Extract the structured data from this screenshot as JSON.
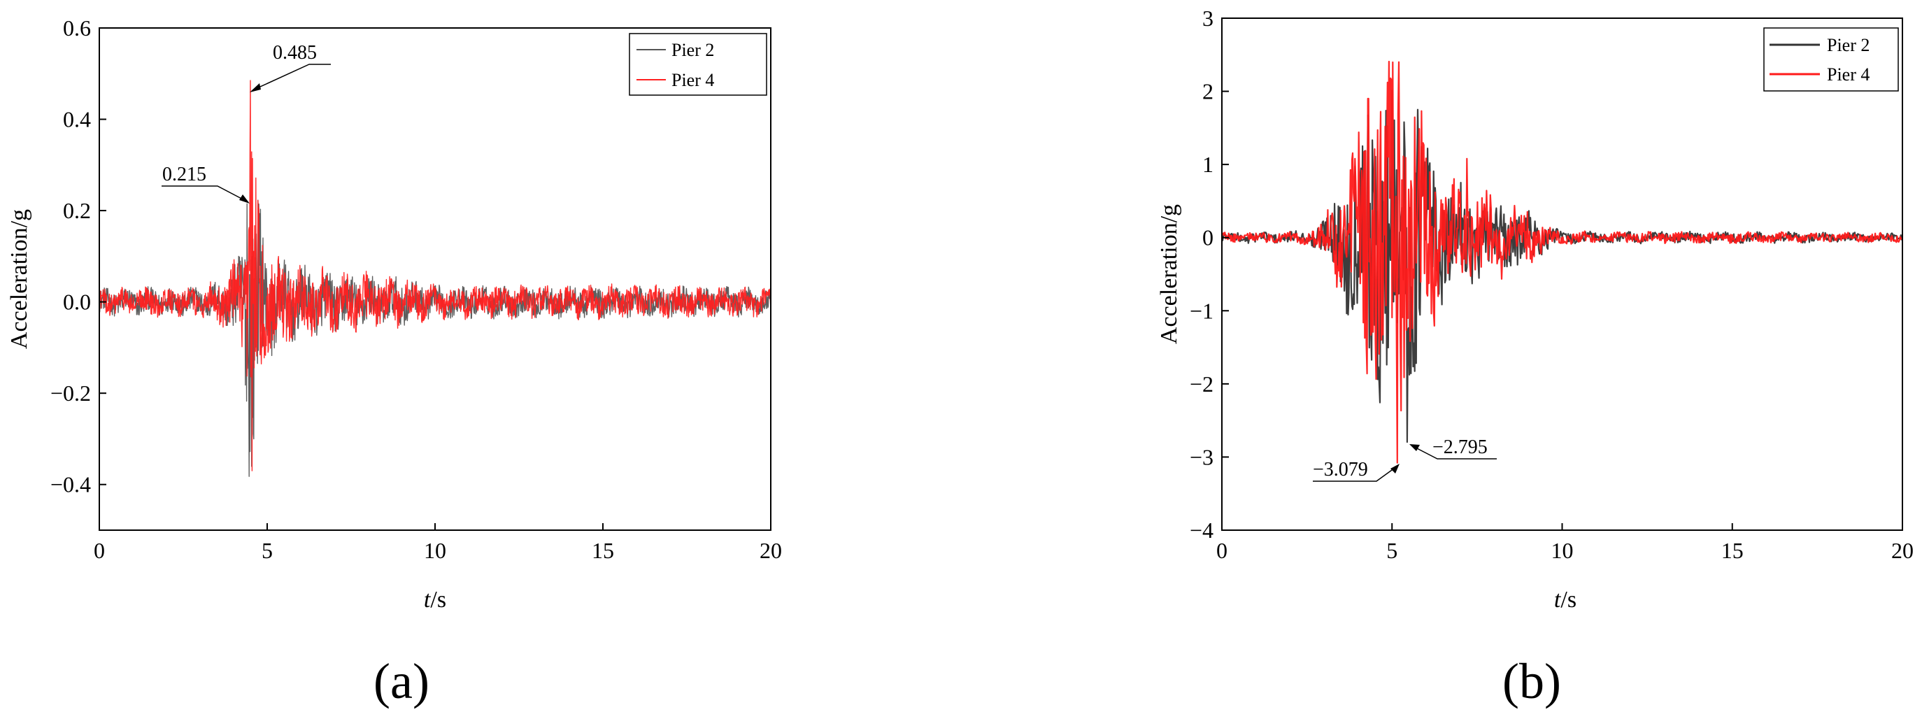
{
  "figure": {
    "panel_a_label": "(a)",
    "panel_b_label": "(b)"
  },
  "chart_data": [
    {
      "type": "line",
      "xlabel_italic": "t",
      "xlabel_unit": "/s",
      "ylabel": "Acceleration/g",
      "xlim": [
        0,
        20
      ],
      "ylim": [
        -0.5,
        0.6
      ],
      "xticks": [
        "0",
        "5",
        "10",
        "15",
        "20"
      ],
      "yticks": [
        "−0.4",
        "−0.2",
        "0.0",
        "0.2",
        "0.4",
        "0.6"
      ],
      "legend_position": "top-right",
      "series": [
        {
          "name": "Pier 2",
          "color": "#555555"
        },
        {
          "name": "Pier 4",
          "color": "#ff2020"
        }
      ],
      "annotations": [
        {
          "text": "0.485",
          "x": 4.5,
          "y": 0.465
        },
        {
          "text": "0.215",
          "x": 4.4,
          "y": 0.215
        }
      ],
      "envelope": {
        "t": [
          0,
          3.0,
          3.8,
          4.2,
          4.4,
          4.5,
          4.7,
          5.0,
          5.5,
          6.0,
          7.0,
          8.0,
          9.0,
          10.0,
          15.0,
          20.0
        ],
        "amp": [
          0.025,
          0.028,
          0.045,
          0.09,
          0.2,
          0.36,
          0.2,
          0.1,
          0.08,
          0.065,
          0.055,
          0.05,
          0.045,
          0.03,
          0.03,
          0.025
        ]
      },
      "peaks": [
        {
          "x": 4.5,
          "y": 0.485,
          "series": 1
        },
        {
          "x": 4.55,
          "y": -0.37,
          "series": 1
        },
        {
          "x": 4.4,
          "y": 0.215,
          "series": 0
        },
        {
          "x": 4.6,
          "y": -0.3,
          "series": 0
        }
      ]
    },
    {
      "type": "line",
      "xlabel_italic": "t",
      "xlabel_unit": "/s",
      "ylabel": "Acceleration/g",
      "xlim": [
        0,
        20
      ],
      "ylim": [
        -4,
        3
      ],
      "xticks": [
        "0",
        "5",
        "10",
        "15",
        "20"
      ],
      "yticks": [
        "−4",
        "−3",
        "−2",
        "−1",
        "0",
        "1",
        "2",
        "3"
      ],
      "legend_position": "top-right",
      "series": [
        {
          "name": "Pier 2",
          "color": "#333333"
        },
        {
          "name": "Pier 4",
          "color": "#ff1a1a"
        }
      ],
      "annotations": [
        {
          "text": "−3.079",
          "x": 5.15,
          "y": -3.079
        },
        {
          "text": "−2.795",
          "x": 5.5,
          "y": -2.795
        }
      ],
      "envelope": {
        "t": [
          0,
          2.5,
          3.0,
          3.5,
          4.0,
          4.5,
          5.0,
          5.5,
          6.0,
          6.5,
          7.0,
          8.0,
          9.0,
          9.5,
          10.0,
          15.0,
          20.0
        ],
        "amp": [
          0.06,
          0.07,
          0.25,
          0.6,
          1.2,
          1.8,
          2.1,
          1.7,
          1.2,
          0.7,
          0.6,
          0.45,
          0.35,
          0.15,
          0.07,
          0.06,
          0.05
        ]
      },
      "peaks": [
        {
          "x": 5.2,
          "y": 2.4,
          "series": 1
        },
        {
          "x": 5.15,
          "y": -3.079,
          "series": 1
        },
        {
          "x": 5.45,
          "y": -2.795,
          "series": 0
        },
        {
          "x": 5.75,
          "y": 1.75,
          "series": 0
        },
        {
          "x": 7.2,
          "y": 1.08,
          "series": 1
        },
        {
          "x": 4.3,
          "y": 1.9,
          "series": 1
        }
      ]
    }
  ]
}
